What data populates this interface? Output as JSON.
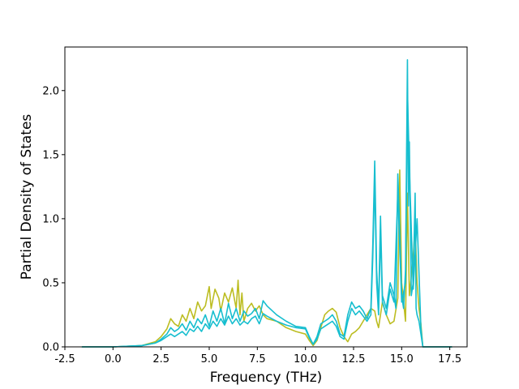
{
  "chart_data": {
    "type": "line",
    "xlabel": "Frequency (THz)",
    "ylabel": "Partial Density of States",
    "xlim": [
      -2.5,
      18.4
    ],
    "ylim": [
      0.0,
      2.34
    ],
    "xticks": [
      "-2.5",
      "0.0",
      "2.5",
      "5.0",
      "7.5",
      "10.0",
      "12.5",
      "15.0",
      "17.5"
    ],
    "yticks": [
      "0.0",
      "0.5",
      "1.0",
      "1.5",
      "2.0"
    ],
    "grid": false,
    "legend": "none",
    "series": [
      {
        "color": "#bcbd22",
        "x": [
          -1.6,
          0.0,
          1.5,
          2.2,
          2.5,
          2.8,
          3.0,
          3.2,
          3.4,
          3.6,
          3.8,
          4.0,
          4.2,
          4.4,
          4.6,
          4.8,
          5.0,
          5.1,
          5.3,
          5.5,
          5.6,
          5.8,
          6.0,
          6.2,
          6.4,
          6.5,
          6.6,
          6.7,
          6.8,
          7.0,
          7.2,
          7.4,
          7.6,
          7.8,
          8.0,
          8.5,
          9.0,
          9.5,
          10.0,
          10.2,
          10.4,
          10.6,
          10.8,
          11.0,
          11.2,
          11.4,
          11.6,
          11.8,
          12.0,
          12.2,
          12.4,
          12.6,
          12.8,
          13.0,
          13.2,
          13.4,
          13.6,
          13.7,
          13.8,
          14.0,
          14.2,
          14.4,
          14.6,
          14.8,
          14.9,
          15.0,
          15.2,
          15.3,
          15.4,
          15.5,
          15.6,
          15.7,
          15.8,
          15.9,
          16.0,
          16.1,
          17.6
        ],
        "y": [
          0.0,
          0.0,
          0.01,
          0.04,
          0.08,
          0.14,
          0.22,
          0.18,
          0.16,
          0.25,
          0.2,
          0.3,
          0.22,
          0.35,
          0.28,
          0.32,
          0.47,
          0.3,
          0.45,
          0.38,
          0.28,
          0.42,
          0.35,
          0.46,
          0.3,
          0.52,
          0.25,
          0.42,
          0.2,
          0.3,
          0.34,
          0.28,
          0.32,
          0.25,
          0.22,
          0.2,
          0.15,
          0.12,
          0.1,
          0.05,
          0.01,
          0.05,
          0.15,
          0.25,
          0.28,
          0.3,
          0.27,
          0.15,
          0.08,
          0.04,
          0.1,
          0.12,
          0.15,
          0.2,
          0.25,
          0.3,
          0.28,
          0.2,
          0.15,
          0.35,
          0.25,
          0.18,
          0.2,
          0.38,
          1.38,
          0.5,
          0.2,
          1.2,
          0.4,
          0.55,
          0.7,
          0.95,
          0.5,
          0.3,
          0.18,
          0.0,
          0.0
        ]
      },
      {
        "color": "#17becf",
        "x": [
          -1.6,
          0.0,
          1.5,
          2.2,
          2.5,
          2.8,
          3.0,
          3.2,
          3.4,
          3.6,
          3.8,
          4.0,
          4.2,
          4.4,
          4.6,
          4.8,
          5.0,
          5.2,
          5.4,
          5.6,
          5.8,
          6.0,
          6.2,
          6.4,
          6.6,
          6.8,
          7.0,
          7.2,
          7.4,
          7.6,
          7.8,
          8.0,
          8.5,
          9.0,
          9.5,
          10.0,
          10.2,
          10.4,
          10.6,
          10.8,
          11.0,
          11.2,
          11.4,
          11.6,
          11.8,
          12.0,
          12.2,
          12.4,
          12.6,
          12.8,
          13.0,
          13.2,
          13.4,
          13.5,
          13.6,
          13.7,
          13.8,
          13.9,
          14.0,
          14.2,
          14.4,
          14.6,
          14.7,
          14.8,
          14.9,
          15.0,
          15.1,
          15.2,
          15.3,
          15.35,
          15.4,
          15.5,
          15.6,
          15.7,
          15.75,
          15.8,
          15.9,
          16.0,
          16.1,
          17.6
        ],
        "y": [
          0.0,
          0.0,
          0.01,
          0.03,
          0.06,
          0.1,
          0.15,
          0.12,
          0.14,
          0.18,
          0.13,
          0.2,
          0.15,
          0.22,
          0.18,
          0.25,
          0.16,
          0.28,
          0.2,
          0.3,
          0.18,
          0.34,
          0.22,
          0.3,
          0.2,
          0.28,
          0.24,
          0.26,
          0.3,
          0.22,
          0.36,
          0.32,
          0.25,
          0.2,
          0.16,
          0.15,
          0.08,
          0.02,
          0.08,
          0.18,
          0.2,
          0.22,
          0.25,
          0.2,
          0.1,
          0.08,
          0.25,
          0.35,
          0.3,
          0.32,
          0.28,
          0.22,
          0.3,
          0.8,
          1.45,
          0.6,
          0.3,
          1.02,
          0.4,
          0.3,
          0.5,
          0.4,
          0.3,
          1.35,
          0.9,
          0.4,
          0.3,
          0.6,
          2.24,
          1.1,
          1.6,
          0.4,
          0.5,
          1.2,
          0.3,
          0.25,
          0.2,
          0.1,
          0.0,
          0.0
        ]
      },
      {
        "color": "#17becf",
        "x": [
          -1.6,
          0.0,
          1.5,
          2.2,
          2.5,
          2.8,
          3.0,
          3.2,
          3.4,
          3.6,
          3.8,
          4.0,
          4.2,
          4.4,
          4.6,
          4.8,
          5.0,
          5.2,
          5.4,
          5.6,
          5.8,
          6.0,
          6.2,
          6.4,
          6.6,
          6.8,
          7.0,
          7.2,
          7.4,
          7.6,
          7.8,
          8.0,
          8.5,
          9.0,
          9.5,
          10.0,
          10.2,
          10.4,
          10.6,
          10.8,
          11.0,
          11.2,
          11.4,
          11.6,
          11.8,
          12.0,
          12.2,
          12.4,
          12.6,
          12.8,
          13.0,
          13.2,
          13.4,
          13.5,
          13.6,
          13.7,
          13.8,
          13.9,
          14.0,
          14.2,
          14.4,
          14.6,
          14.8,
          15.0,
          15.2,
          15.3,
          15.4,
          15.6,
          15.8,
          16.0,
          16.1,
          17.6
        ],
        "y": [
          0.0,
          0.0,
          0.01,
          0.03,
          0.05,
          0.08,
          0.1,
          0.08,
          0.1,
          0.12,
          0.09,
          0.14,
          0.12,
          0.16,
          0.12,
          0.18,
          0.14,
          0.2,
          0.16,
          0.22,
          0.17,
          0.24,
          0.18,
          0.22,
          0.17,
          0.2,
          0.18,
          0.22,
          0.24,
          0.18,
          0.26,
          0.24,
          0.2,
          0.17,
          0.15,
          0.14,
          0.07,
          0.02,
          0.06,
          0.14,
          0.16,
          0.18,
          0.2,
          0.16,
          0.08,
          0.06,
          0.2,
          0.3,
          0.25,
          0.28,
          0.24,
          0.2,
          0.25,
          0.7,
          1.3,
          0.5,
          0.25,
          0.9,
          0.35,
          0.25,
          0.45,
          0.35,
          1.2,
          0.35,
          0.5,
          2.0,
          1.4,
          0.45,
          1.0,
          0.15,
          0.0,
          0.0
        ]
      }
    ]
  }
}
